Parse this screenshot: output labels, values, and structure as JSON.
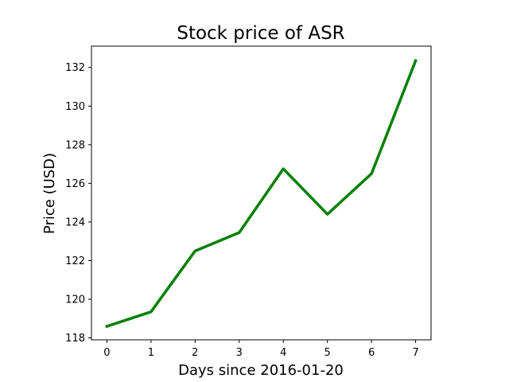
{
  "chart_data": {
    "type": "line",
    "title": "Stock price of ASR",
    "xlabel": "Days since 2016-01-20",
    "ylabel": "Price (USD)",
    "x": [
      0,
      1,
      2,
      3,
      4,
      5,
      6,
      7
    ],
    "x_tick_labels": [
      "0",
      "1",
      "2",
      "3",
      "4",
      "5",
      "6",
      "7"
    ],
    "y_tick_labels": [
      "118",
      "120",
      "122",
      "124",
      "126",
      "128",
      "130",
      "132"
    ],
    "y_ticks": [
      118,
      120,
      122,
      124,
      126,
      128,
      130,
      132
    ],
    "xlim": [
      -0.35,
      7.35
    ],
    "ylim": [
      117.9,
      133.1
    ],
    "series": [
      {
        "values": [
          118.6,
          119.35,
          122.5,
          123.45,
          126.75,
          124.4,
          126.5,
          132.35
        ],
        "color": "#008000"
      }
    ],
    "grid": false,
    "legend": "none"
  }
}
